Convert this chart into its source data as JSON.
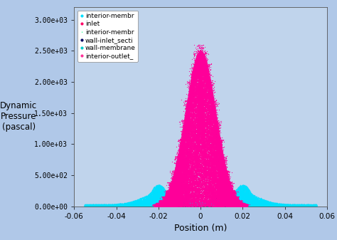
{
  "xlabel": "Position (m)",
  "ylabel": "Dynamic\nPressure\n(pascal)",
  "xlim": [
    -0.06,
    0.06
  ],
  "ylim": [
    0,
    3200
  ],
  "yticks": [
    0,
    500,
    1000,
    1500,
    2000,
    2500,
    3000
  ],
  "xticks": [
    -0.06,
    -0.04,
    -0.02,
    0.0,
    0.02,
    0.04,
    0.06
  ],
  "xtick_labels": [
    "-0.06",
    "-0.04",
    "-0.02",
    "0",
    "0.02",
    "0.04",
    "0.06"
  ],
  "background_color": "#b0c8e8",
  "plot_bg_color": "#c0d4ec",
  "legend_entries": [
    {
      "label": "interior-membr",
      "color": "#00e0ff",
      "marker": "o"
    },
    {
      "label": "inlet",
      "color": "#ff0066",
      "marker": "o"
    },
    {
      "label": "interior-membr",
      "color": "#00ff80",
      "marker": "*"
    },
    {
      "label": "wall-inlet_secti",
      "color": "#000060",
      "marker": "o"
    },
    {
      "label": "wall-membrane",
      "color": "#00cccc",
      "marker": "o"
    },
    {
      "label": "interior-outlet_",
      "color": "#ff3399",
      "marker": "o"
    }
  ],
  "magenta_color": "#ff0099",
  "cyan_color": "#00e0ff",
  "seed": 42
}
